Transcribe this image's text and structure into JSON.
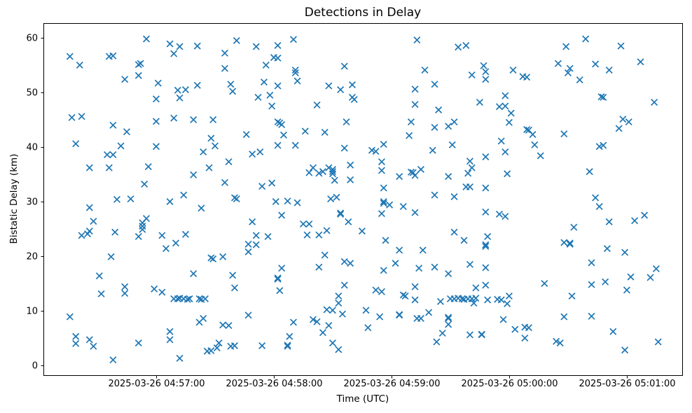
{
  "figure": {
    "title": "Detections in Delay",
    "xlabel": "Time (UTC)",
    "ylabel": "Bistatic Delay (km)"
  },
  "chart_data": {
    "type": "scatter",
    "title": "Detections in Delay",
    "xlabel": "Time (UTC)",
    "ylabel": "Bistatic Delay (km)",
    "marker": "x",
    "marker_color": "#1f77b4",
    "grid": false,
    "legend": "none",
    "date": "2025-03-26",
    "x_axis": {
      "tick_times": [
        "04:57:00",
        "04:58:00",
        "04:59:00",
        "05:00:00",
        "05:01:00"
      ],
      "tick_labels": [
        "2025-03-26 04:57:00",
        "2025-03-26 04:58:00",
        "2025-03-26 04:59:00",
        "2025-03-26 05:00:00",
        "2025-03-26 05:01:00"
      ],
      "min_time": "04:56:02.5",
      "max_time": "05:01:28.6"
    },
    "y_axis": {
      "ticks": [
        0,
        10,
        20,
        30,
        40,
        50,
        60
      ],
      "min": -1.8,
      "max": 62.7
    },
    "points": [
      [
        "04:56:55",
        59.8
      ],
      [
        "04:57:07",
        58.9
      ],
      [
        "04:57:12",
        58.4
      ],
      [
        "04:57:21",
        58.5
      ],
      [
        "04:57:09",
        57.1
      ],
      [
        "04:56:16",
        56.6
      ],
      [
        "04:56:36",
        56.6
      ],
      [
        "04:56:38",
        56.7
      ],
      [
        "04:56:21",
        55.0
      ],
      [
        "04:56:51",
        55.1
      ],
      [
        "04:56:52",
        55.3
      ],
      [
        "04:56:51",
        53.1
      ],
      [
        "04:56:44",
        52.4
      ],
      [
        "04:57:01",
        51.7
      ],
      [
        "04:57:21",
        51.3
      ],
      [
        "04:57:11",
        50.4
      ],
      [
        "04:57:15",
        50.5
      ],
      [
        "04:57:00",
        48.8
      ],
      [
        "04:57:12",
        49.0
      ],
      [
        "04:57:41",
        59.5
      ],
      [
        "04:58:10",
        59.7
      ],
      [
        "04:57:51",
        58.4
      ],
      [
        "04:58:02",
        58.6
      ],
      [
        "04:57:35",
        57.2
      ],
      [
        "04:58:00",
        56.4
      ],
      [
        "04:58:02",
        56.3
      ],
      [
        "04:57:56",
        55.0
      ],
      [
        "04:57:35",
        54.4
      ],
      [
        "04:58:36",
        54.8
      ],
      [
        "04:58:11",
        54.1
      ],
      [
        "04:58:11",
        53.6
      ],
      [
        "04:58:12",
        52.1
      ],
      [
        "04:57:55",
        51.9
      ],
      [
        "04:57:38",
        51.5
      ],
      [
        "04:58:02",
        51.2
      ],
      [
        "04:57:39",
        50.2
      ],
      [
        "04:58:28",
        51.2
      ],
      [
        "04:58:34",
        50.5
      ],
      [
        "04:58:40",
        51.4
      ],
      [
        "04:57:52",
        49.1
      ],
      [
        "04:57:58",
        49.5
      ],
      [
        "04:58:40",
        49.1
      ],
      [
        "04:58:41",
        48.7
      ],
      [
        "04:57:59",
        47.5
      ],
      [
        "04:58:22",
        47.7
      ],
      [
        "04:59:13",
        59.6
      ],
      [
        "04:59:34",
        58.3
      ],
      [
        "04:59:38",
        58.6
      ],
      [
        "04:59:47",
        54.9
      ],
      [
        "04:59:48",
        53.8
      ],
      [
        "04:59:17",
        54.1
      ],
      [
        "04:59:41",
        53.2
      ],
      [
        "04:59:48",
        52.4
      ],
      [
        "05:00:02",
        54.1
      ],
      [
        "05:00:07",
        52.9
      ],
      [
        "05:00:09",
        52.8
      ],
      [
        "04:59:22",
        51.5
      ],
      [
        "04:59:12",
        50.6
      ],
      [
        "04:59:12",
        47.8
      ],
      [
        "04:59:45",
        48.2
      ],
      [
        "04:59:58",
        49.4
      ],
      [
        "04:59:55",
        47.4
      ],
      [
        "04:59:58",
        47.5
      ],
      [
        "04:59:24",
        46.8
      ],
      [
        "05:00:01",
        46.2
      ],
      [
        "05:00:39",
        59.8
      ],
      [
        "05:00:29",
        58.4
      ],
      [
        "05:00:57",
        58.5
      ],
      [
        "05:00:25",
        55.3
      ],
      [
        "05:01:07",
        55.6
      ],
      [
        "05:00:44",
        55.2
      ],
      [
        "05:00:31",
        54.4
      ],
      [
        "05:00:30",
        53.6
      ],
      [
        "05:00:51",
        54.1
      ],
      [
        "05:00:36",
        52.3
      ],
      [
        "05:00:47",
        49.2
      ],
      [
        "05:00:48",
        49.1
      ],
      [
        "05:01:14",
        48.2
      ],
      [
        "04:56:17",
        45.4
      ],
      [
        "04:56:22",
        45.6
      ],
      [
        "04:57:00",
        44.7
      ],
      [
        "04:57:09",
        45.3
      ],
      [
        "04:57:19",
        45.0
      ],
      [
        "04:56:38",
        44.0
      ],
      [
        "04:56:45",
        42.8
      ],
      [
        "04:56:19",
        40.6
      ],
      [
        "04:56:42",
        40.2
      ],
      [
        "04:57:00",
        40.1
      ],
      [
        "04:56:35",
        38.6
      ],
      [
        "04:56:38",
        38.6
      ],
      [
        "04:57:24",
        39.1
      ],
      [
        "04:56:26",
        36.2
      ],
      [
        "04:56:36",
        36.2
      ],
      [
        "04:56:56",
        36.4
      ],
      [
        "04:57:19",
        34.9
      ],
      [
        "04:56:54",
        33.2
      ],
      [
        "04:57:14",
        31.2
      ],
      [
        "04:57:29",
        45.0
      ],
      [
        "04:58:02",
        44.6
      ],
      [
        "04:58:03",
        44.4
      ],
      [
        "04:58:04",
        44.1
      ],
      [
        "04:57:46",
        42.3
      ],
      [
        "04:58:05",
        42.2
      ],
      [
        "04:58:16",
        42.9
      ],
      [
        "04:58:26",
        42.7
      ],
      [
        "04:58:37",
        44.6
      ],
      [
        "04:57:28",
        41.6
      ],
      [
        "04:57:30",
        40.2
      ],
      [
        "04:58:02",
        40.3
      ],
      [
        "04:58:11",
        40.3
      ],
      [
        "04:58:36",
        39.8
      ],
      [
        "04:57:49",
        38.7
      ],
      [
        "04:57:53",
        39.1
      ],
      [
        "04:57:37",
        37.3
      ],
      [
        "04:57:27",
        36.2
      ],
      [
        "04:58:39",
        36.7
      ],
      [
        "04:58:20",
        36.2
      ],
      [
        "04:58:18",
        35.3
      ],
      [
        "04:58:23",
        35.2
      ],
      [
        "04:58:25",
        35.5
      ],
      [
        "04:58:28",
        36.2
      ],
      [
        "04:58:30",
        35.9
      ],
      [
        "04:58:30",
        35.5
      ],
      [
        "04:58:30",
        35.1
      ],
      [
        "04:58:39",
        34.0
      ],
      [
        "04:58:31",
        33.9
      ],
      [
        "04:57:35",
        33.5
      ],
      [
        "04:57:54",
        32.8
      ],
      [
        "04:57:59",
        33.4
      ],
      [
        "04:57:40",
        30.7
      ],
      [
        "04:57:41",
        30.5
      ],
      [
        "04:58:29",
        30.5
      ],
      [
        "04:58:32",
        30.8
      ],
      [
        "04:59:10",
        44.6
      ],
      [
        "04:59:22",
        43.6
      ],
      [
        "04:59:29",
        43.8
      ],
      [
        "04:59:32",
        44.6
      ],
      [
        "05:00:00",
        44.5
      ],
      [
        "05:00:09",
        43.2
      ],
      [
        "04:59:09",
        42.1
      ],
      [
        "04:58:56",
        40.5
      ],
      [
        "04:58:50",
        39.4
      ],
      [
        "04:58:52",
        39.2
      ],
      [
        "04:59:56",
        41.1
      ],
      [
        "04:59:21",
        39.4
      ],
      [
        "04:59:31",
        40.4
      ],
      [
        "04:59:58",
        39.1
      ],
      [
        "04:59:48",
        38.2
      ],
      [
        "04:58:55",
        37.3
      ],
      [
        "04:59:40",
        37.4
      ],
      [
        "04:58:55",
        35.7
      ],
      [
        "04:59:41",
        36.2
      ],
      [
        "04:59:39",
        35.2
      ],
      [
        "04:59:15",
        35.9
      ],
      [
        "04:59:10",
        35.4
      ],
      [
        "04:59:11",
        35.3
      ],
      [
        "04:59:12",
        34.8
      ],
      [
        "04:59:04",
        34.6
      ],
      [
        "04:59:29",
        34.6
      ],
      [
        "04:59:59",
        35.1
      ],
      [
        "04:59:38",
        32.7
      ],
      [
        "04:59:40",
        32.7
      ],
      [
        "04:59:48",
        32.5
      ],
      [
        "04:58:56",
        32.5
      ],
      [
        "04:59:22",
        31.2
      ],
      [
        "04:59:32",
        30.9
      ],
      [
        "05:00:58",
        45.1
      ],
      [
        "05:01:01",
        44.6
      ],
      [
        "05:00:56",
        43.4
      ],
      [
        "05:00:10",
        43.1
      ],
      [
        "05:00:12",
        42.3
      ],
      [
        "05:00:28",
        42.4
      ],
      [
        "05:00:13",
        40.4
      ],
      [
        "05:00:46",
        40.1
      ],
      [
        "05:00:48",
        40.3
      ],
      [
        "05:00:16",
        38.4
      ],
      [
        "05:00:41",
        35.5
      ],
      [
        "05:00:44",
        30.7
      ],
      [
        "04:56:26",
        28.9
      ],
      [
        "04:56:40",
        30.4
      ],
      [
        "04:56:47",
        30.5
      ],
      [
        "04:57:07",
        30.0
      ],
      [
        "04:57:23",
        28.8
      ],
      [
        "04:56:28",
        26.4
      ],
      [
        "04:56:55",
        26.9
      ],
      [
        "04:56:53",
        26.1
      ],
      [
        "04:56:53",
        25.5
      ],
      [
        "04:56:53",
        24.9
      ],
      [
        "04:56:22",
        23.8
      ],
      [
        "04:56:25",
        24.1
      ],
      [
        "04:56:26",
        24.6
      ],
      [
        "04:56:39",
        24.4
      ],
      [
        "04:56:51",
        23.6
      ],
      [
        "04:57:03",
        23.8
      ],
      [
        "04:57:15",
        24.0
      ],
      [
        "04:57:10",
        22.4
      ],
      [
        "04:57:05",
        21.4
      ],
      [
        "04:56:37",
        19.9
      ],
      [
        "04:56:31",
        16.4
      ],
      [
        "04:57:19",
        16.8
      ],
      [
        "04:58:01",
        30.0
      ],
      [
        "04:58:07",
        30.1
      ],
      [
        "04:58:12",
        29.8
      ],
      [
        "04:58:04",
        27.5
      ],
      [
        "04:58:34",
        27.9
      ],
      [
        "04:58:34",
        27.7
      ],
      [
        "04:57:49",
        26.3
      ],
      [
        "04:58:15",
        25.9
      ],
      [
        "04:58:18",
        25.9
      ],
      [
        "04:58:38",
        26.3
      ],
      [
        "04:58:45",
        24.6
      ],
      [
        "04:58:27",
        24.7
      ],
      [
        "04:58:17",
        23.9
      ],
      [
        "04:58:23",
        23.9
      ],
      [
        "04:57:51",
        23.8
      ],
      [
        "04:57:57",
        23.6
      ],
      [
        "04:57:47",
        22.2
      ],
      [
        "04:57:51",
        22.1
      ],
      [
        "04:57:47",
        20.8
      ],
      [
        "04:57:28",
        19.7
      ],
      [
        "04:57:29",
        19.5
      ],
      [
        "04:57:34",
        19.9
      ],
      [
        "04:58:26",
        20.2
      ],
      [
        "04:58:36",
        19.0
      ],
      [
        "04:58:39",
        18.7
      ],
      [
        "04:58:23",
        18.0
      ],
      [
        "04:58:04",
        17.8
      ],
      [
        "04:57:39",
        16.5
      ],
      [
        "04:58:02",
        16.0
      ],
      [
        "04:58:02",
        15.8
      ],
      [
        "04:58:56",
        30.0
      ],
      [
        "04:58:56",
        29.7
      ],
      [
        "04:58:59",
        29.4
      ],
      [
        "04:58:55",
        27.8
      ],
      [
        "04:59:06",
        29.1
      ],
      [
        "04:59:12",
        28.0
      ],
      [
        "04:59:48",
        28.1
      ],
      [
        "04:59:55",
        27.7
      ],
      [
        "04:59:58",
        27.3
      ],
      [
        "04:59:32",
        24.4
      ],
      [
        "04:59:37",
        22.9
      ],
      [
        "04:59:49",
        23.6
      ],
      [
        "04:59:48",
        22.1
      ],
      [
        "04:59:48",
        21.8
      ],
      [
        "04:58:57",
        22.9
      ],
      [
        "04:59:04",
        21.1
      ],
      [
        "04:59:16",
        21.1
      ],
      [
        "04:59:02",
        18.7
      ],
      [
        "04:58:56",
        17.4
      ],
      [
        "04:59:14",
        17.8
      ],
      [
        "04:59:22",
        18.0
      ],
      [
        "04:59:29",
        16.8
      ],
      [
        "04:59:40",
        18.5
      ],
      [
        "04:59:48",
        17.9
      ],
      [
        "05:00:46",
        29.1
      ],
      [
        "05:00:51",
        26.3
      ],
      [
        "05:01:04",
        26.5
      ],
      [
        "05:01:09",
        27.5
      ],
      [
        "05:00:33",
        25.3
      ],
      [
        "05:00:28",
        22.5
      ],
      [
        "05:00:31",
        22.4
      ],
      [
        "05:00:31",
        22.2
      ],
      [
        "05:00:50",
        21.4
      ],
      [
        "05:00:59",
        20.7
      ],
      [
        "05:00:42",
        18.8
      ],
      [
        "05:01:15",
        17.7
      ],
      [
        "05:01:02",
        16.2
      ],
      [
        "05:01:12",
        16.1
      ],
      [
        "05:00:18",
        15.0
      ],
      [
        "05:00:42",
        14.8
      ],
      [
        "05:00:49",
        15.3
      ],
      [
        "04:56:32",
        13.1
      ],
      [
        "04:56:44",
        14.4
      ],
      [
        "04:56:44",
        13.2
      ],
      [
        "04:56:59",
        14.0
      ],
      [
        "04:57:03",
        13.4
      ],
      [
        "04:57:09",
        12.2
      ],
      [
        "04:57:11",
        12.2
      ],
      [
        "04:57:12",
        12.3
      ],
      [
        "04:57:14",
        12.2
      ],
      [
        "04:57:16",
        12.1
      ],
      [
        "04:57:17",
        12.2
      ],
      [
        "04:57:22",
        12.2
      ],
      [
        "04:57:23",
        12.1
      ],
      [
        "04:57:25",
        12.2
      ],
      [
        "04:56:16",
        8.9
      ],
      [
        "04:57:22",
        7.9
      ],
      [
        "04:57:24",
        8.6
      ],
      [
        "04:56:19",
        5.3
      ],
      [
        "04:56:19",
        4.0
      ],
      [
        "04:56:26",
        4.7
      ],
      [
        "04:56:28",
        3.5
      ],
      [
        "04:56:51",
        4.1
      ],
      [
        "04:57:07",
        6.2
      ],
      [
        "04:57:07",
        4.7
      ],
      [
        "04:56:38",
        1.0
      ],
      [
        "04:57:12",
        1.3
      ],
      [
        "04:57:40",
        14.2
      ],
      [
        "04:58:03",
        13.7
      ],
      [
        "04:58:36",
        14.7
      ],
      [
        "04:58:33",
        12.7
      ],
      [
        "04:58:33",
        11.4
      ],
      [
        "04:58:27",
        10.2
      ],
      [
        "04:58:30",
        10.1
      ],
      [
        "04:58:35",
        9.4
      ],
      [
        "04:58:47",
        10.1
      ],
      [
        "04:57:47",
        9.2
      ],
      [
        "04:57:34",
        7.4
      ],
      [
        "04:57:37",
        7.3
      ],
      [
        "04:58:10",
        7.9
      ],
      [
        "04:58:20",
        8.4
      ],
      [
        "04:58:22",
        8.0
      ],
      [
        "04:58:28",
        7.3
      ],
      [
        "04:58:25",
        6.0
      ],
      [
        "04:58:08",
        5.3
      ],
      [
        "04:58:07",
        3.7
      ],
      [
        "04:58:07",
        3.5
      ],
      [
        "04:57:54",
        3.6
      ],
      [
        "04:57:32",
        4.1
      ],
      [
        "04:57:31",
        3.2
      ],
      [
        "04:57:28",
        2.7
      ],
      [
        "04:57:26",
        2.6
      ],
      [
        "04:57:38",
        3.5
      ],
      [
        "04:57:40",
        3.6
      ],
      [
        "04:58:30",
        4.1
      ],
      [
        "04:58:33",
        2.9
      ],
      [
        "04:58:52",
        13.8
      ],
      [
        "04:58:55",
        13.5
      ],
      [
        "04:59:12",
        14.4
      ],
      [
        "04:59:43",
        14.2
      ],
      [
        "04:59:48",
        14.7
      ],
      [
        "04:59:06",
        12.9
      ],
      [
        "04:59:07",
        12.7
      ],
      [
        "04:59:12",
        12.0
      ],
      [
        "04:59:25",
        11.7
      ],
      [
        "04:59:30",
        12.2
      ],
      [
        "04:59:32",
        12.2
      ],
      [
        "04:59:34",
        12.3
      ],
      [
        "04:59:36",
        12.2
      ],
      [
        "04:59:37",
        12.1
      ],
      [
        "04:59:39",
        12.2
      ],
      [
        "04:59:41",
        12.2
      ],
      [
        "04:59:43",
        12.3
      ],
      [
        "04:59:42",
        11.4
      ],
      [
        "04:59:49",
        12.0
      ],
      [
        "04:59:54",
        12.1
      ],
      [
        "04:59:56",
        12.0
      ],
      [
        "05:00:00",
        12.7
      ],
      [
        "04:59:59",
        11.3
      ],
      [
        "04:58:54",
        8.9
      ],
      [
        "04:59:04",
        9.3
      ],
      [
        "04:59:04",
        9.2
      ],
      [
        "04:59:13",
        8.6
      ],
      [
        "04:59:15",
        8.6
      ],
      [
        "04:59:19",
        9.7
      ],
      [
        "04:58:48",
        6.9
      ],
      [
        "04:59:29",
        8.8
      ],
      [
        "04:59:29",
        8.6
      ],
      [
        "04:59:29",
        7.5
      ],
      [
        "04:59:26",
        5.9
      ],
      [
        "04:59:40",
        5.6
      ],
      [
        "04:59:46",
        5.7
      ],
      [
        "04:59:46",
        5.6
      ],
      [
        "04:59:23",
        4.3
      ],
      [
        "05:00:03",
        6.6
      ],
      [
        "05:00:08",
        7.0
      ],
      [
        "04:59:57",
        8.4
      ],
      [
        "05:00:08",
        5.0
      ],
      [
        "05:01:00",
        13.8
      ],
      [
        "05:00:32",
        12.7
      ],
      [
        "05:00:28",
        8.9
      ],
      [
        "05:00:42",
        9.0
      ],
      [
        "05:00:10",
        6.9
      ],
      [
        "05:00:24",
        4.4
      ],
      [
        "05:00:26",
        4.1
      ],
      [
        "05:00:53",
        6.2
      ],
      [
        "05:00:59",
        2.8
      ],
      [
        "05:01:16",
        4.3
      ]
    ]
  }
}
